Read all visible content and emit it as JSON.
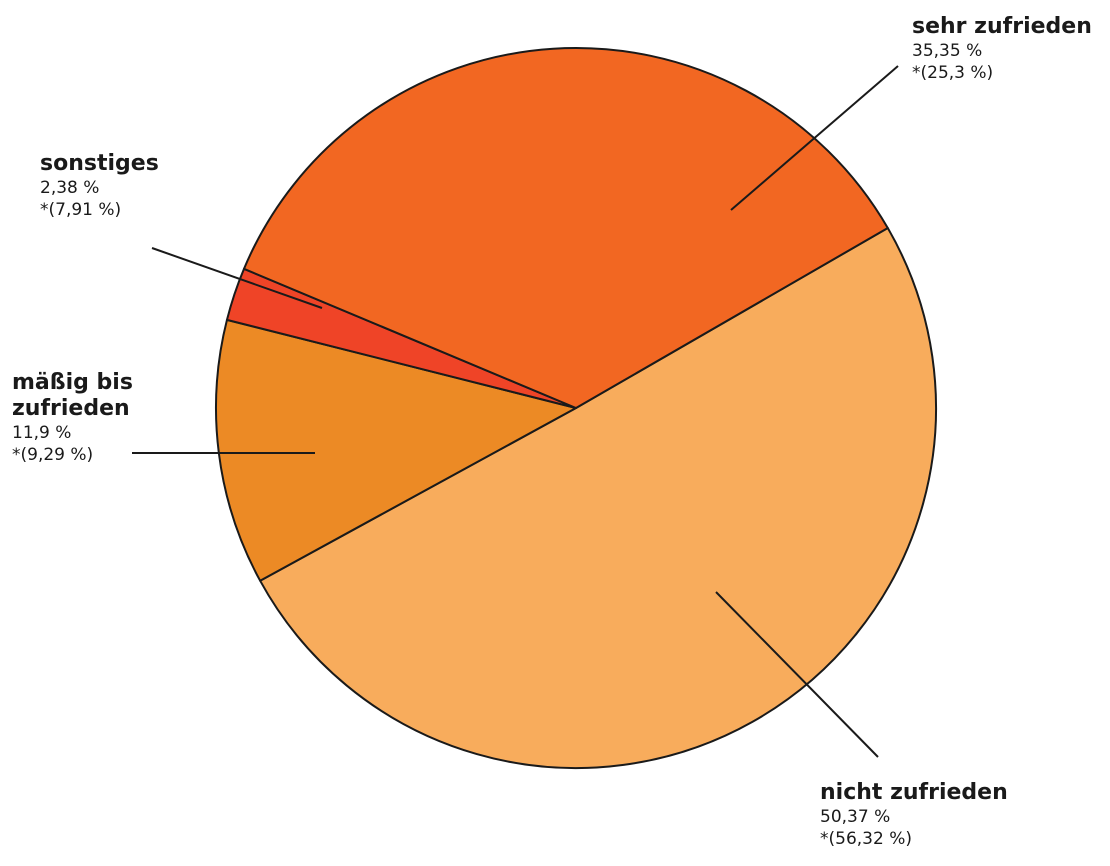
{
  "chart_data": {
    "type": "pie",
    "slices": [
      {
        "label": "sehr zufrieden",
        "value": 35.35,
        "value_text": "35,35 %",
        "prev_text": "*(25,3 %)",
        "color": "#F26722"
      },
      {
        "label": "nicht zufrieden",
        "value": 50.37,
        "value_text": "50,37 %",
        "prev_text": "*(56,32 %)",
        "color": "#F8AC5C"
      },
      {
        "label": "mäßig bis zufrieden",
        "label_lines": [
          "mäßig bis",
          "zufrieden"
        ],
        "value": 11.9,
        "value_text": "11,9  %",
        "prev_text": "*(9,29 %)",
        "color": "#EC8A25"
      },
      {
        "label": "sonstiges",
        "value": 2.38,
        "value_text": "2,38 %",
        "prev_text": "*(7,91 %)",
        "color": "#EF4427"
      }
    ]
  }
}
